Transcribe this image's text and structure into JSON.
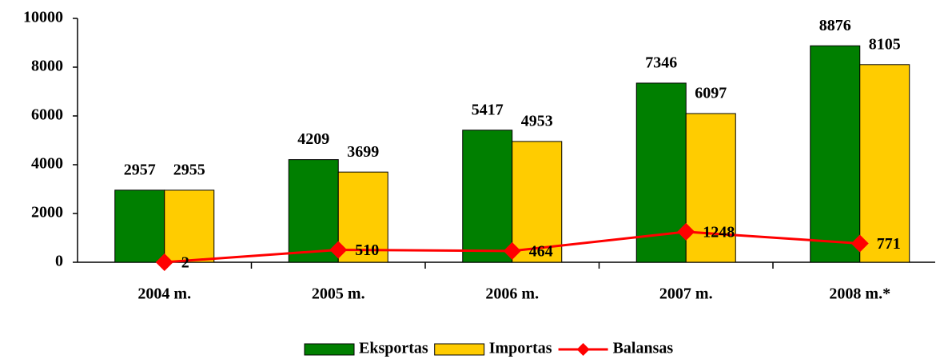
{
  "chart_data": {
    "type": "bar",
    "categories": [
      "2004 m.",
      "2005 m.",
      "2006 m.",
      "2007 m.",
      "2008 m.*"
    ],
    "series": [
      {
        "name": "Eksportas",
        "color": "#007f00",
        "values": [
          2957,
          4209,
          5417,
          7346,
          8876
        ]
      },
      {
        "name": "Importas",
        "color": "#ffcc00",
        "values": [
          2955,
          3699,
          4953,
          6097,
          8105
        ]
      },
      {
        "name": "Balansas",
        "color": "#ff0000",
        "type": "line",
        "values": [
          2,
          510,
          464,
          1248,
          771
        ]
      }
    ],
    "ylim": [
      0,
      10000
    ],
    "yticks": [
      0,
      2000,
      4000,
      6000,
      8000,
      10000
    ],
    "legend": "bottom"
  }
}
